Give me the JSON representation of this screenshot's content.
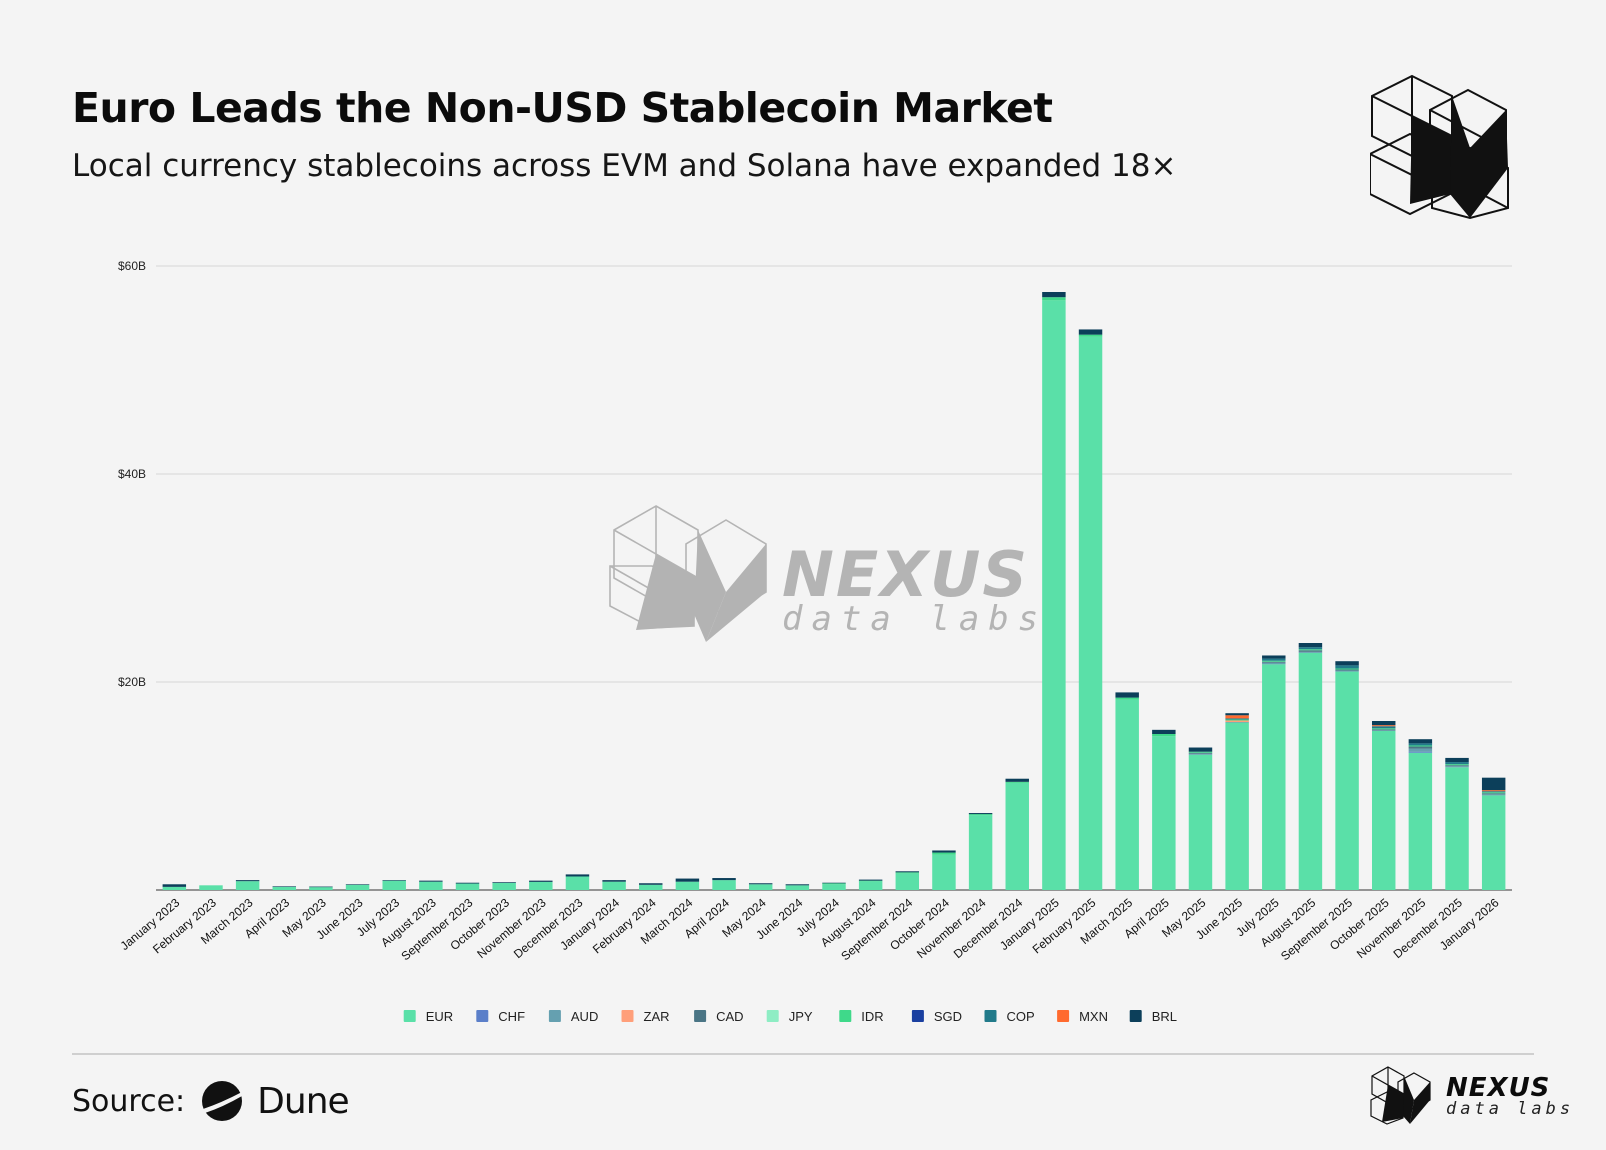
{
  "header": {
    "title": "Euro Leads the Non-USD Stablecoin Market",
    "subtitle": "Local currency stablecoins across EVM and Solana have expanded 18×"
  },
  "watermark": {
    "line1": "NEXUS",
    "line2": "data labs"
  },
  "footer": {
    "source_label": "Source:",
    "source_name": "Dune",
    "brand_line1": "NEXUS",
    "brand_line2": "data labs"
  },
  "icons": {
    "brand_logo": "nexus-logo-icon",
    "dune_logo": "dune-logo-icon"
  },
  "chart_data": {
    "type": "bar",
    "stacked": true,
    "title": "",
    "xlabel": "",
    "ylabel": "",
    "ylim": [
      0,
      60000000000
    ],
    "yticks": [
      {
        "value": 20000000000,
        "label": "$20B"
      },
      {
        "value": 40000000000,
        "label": "$40B"
      },
      {
        "value": 60000000000,
        "label": "$60B"
      }
    ],
    "grid": true,
    "legend_position": "bottom",
    "categories": [
      "January 2023",
      "February 2023",
      "March 2023",
      "April 2023",
      "May 2023",
      "June 2023",
      "July 2023",
      "August 2023",
      "September 2023",
      "October 2023",
      "November 2023",
      "December 2023",
      "January 2024",
      "February 2024",
      "March 2024",
      "April 2024",
      "May 2024",
      "June 2024",
      "July 2024",
      "August 2024",
      "September 2024",
      "October 2024",
      "November 2024",
      "December 2024",
      "January 2025",
      "February 2025",
      "March 2025",
      "April 2025",
      "May 2025",
      "June 2025",
      "July 2025",
      "August 2025",
      "September 2025",
      "October 2025",
      "November 2025",
      "December 2025",
      "January 2026"
    ],
    "series": [
      {
        "name": "EUR",
        "color": "#5ae0a8",
        "values": [
          0.3,
          0.45,
          0.85,
          0.3,
          0.28,
          0.5,
          0.9,
          0.8,
          0.62,
          0.68,
          0.78,
          1.3,
          0.8,
          0.5,
          0.8,
          0.95,
          0.55,
          0.45,
          0.55,
          0.85,
          1.6,
          3.4,
          7.2,
          10.3,
          56.7,
          53.2,
          18.3,
          14.8,
          13.0,
          16.1,
          21.7,
          22.8,
          21.0,
          15.3,
          13.2,
          11.8,
          9.1
        ]
      },
      {
        "name": "CHF",
        "color": "#5b7fc9",
        "values": [
          0,
          0,
          0,
          0,
          0,
          0,
          0,
          0,
          0,
          0,
          0,
          0,
          0,
          0,
          0,
          0,
          0,
          0,
          0,
          0,
          0,
          0,
          0,
          0,
          0,
          0,
          0,
          0,
          0,
          0,
          0,
          0,
          0,
          0,
          0.1,
          0,
          0
        ]
      },
      {
        "name": "AUD",
        "color": "#65a0b0",
        "values": [
          0,
          0,
          0,
          0,
          0,
          0,
          0,
          0,
          0,
          0,
          0,
          0,
          0,
          0,
          0,
          0,
          0,
          0,
          0,
          0,
          0,
          0,
          0,
          0,
          0,
          0,
          0,
          0,
          0.1,
          0.05,
          0.15,
          0.1,
          0.1,
          0.05,
          0.3,
          0.1,
          0.1
        ]
      },
      {
        "name": "ZAR",
        "color": "#ff9f7a",
        "values": [
          0,
          0,
          0,
          0,
          0,
          0,
          0,
          0,
          0,
          0,
          0,
          0,
          0,
          0,
          0,
          0,
          0,
          0,
          0,
          0,
          0,
          0,
          0,
          0,
          0,
          0,
          0,
          0,
          0,
          0.15,
          0,
          0,
          0,
          0,
          0,
          0,
          0
        ]
      },
      {
        "name": "CAD",
        "color": "#4a7585",
        "values": [
          0,
          0,
          0,
          0,
          0,
          0,
          0,
          0,
          0,
          0,
          0,
          0,
          0,
          0,
          0,
          0,
          0,
          0,
          0,
          0,
          0,
          0,
          0,
          0,
          0,
          0,
          0,
          0,
          0.1,
          0,
          0.1,
          0.15,
          0.1,
          0.1,
          0.2,
          0.1,
          0.1
        ]
      },
      {
        "name": "JPY",
        "color": "#8eedc4",
        "values": [
          0,
          0,
          0,
          0,
          0,
          0,
          0,
          0,
          0,
          0,
          0,
          0,
          0,
          0,
          0,
          0,
          0,
          0,
          0,
          0,
          0,
          0,
          0,
          0,
          0,
          0,
          0,
          0,
          0,
          0,
          0,
          0,
          0,
          0,
          0,
          0,
          0
        ]
      },
      {
        "name": "IDR",
        "color": "#3fd98a",
        "values": [
          0,
          0,
          0,
          0,
          0,
          0,
          0,
          0,
          0,
          0,
          0,
          0,
          0,
          0,
          0,
          0,
          0,
          0,
          0.1,
          0.05,
          0.1,
          0.2,
          0.1,
          0.1,
          0.3,
          0.2,
          0.2,
          0.2,
          0.1,
          0.1,
          0.1,
          0.1,
          0.1,
          0.1,
          0.1,
          0.1,
          0.1
        ]
      },
      {
        "name": "SGD",
        "color": "#1a3fa0",
        "values": [
          0,
          0,
          0,
          0,
          0,
          0,
          0,
          0,
          0,
          0,
          0,
          0,
          0,
          0,
          0,
          0,
          0,
          0,
          0,
          0,
          0,
          0,
          0,
          0,
          0,
          0,
          0,
          0,
          0,
          0,
          0,
          0,
          0,
          0,
          0,
          0,
          0
        ]
      },
      {
        "name": "COP",
        "color": "#217a8a",
        "values": [
          0,
          0,
          0,
          0,
          0,
          0,
          0,
          0,
          0,
          0,
          0,
          0,
          0,
          0,
          0,
          0,
          0,
          0,
          0,
          0,
          0,
          0,
          0,
          0,
          0,
          0,
          0,
          0,
          0,
          0.1,
          0.2,
          0.2,
          0.3,
          0.2,
          0.2,
          0.2,
          0.1
        ]
      },
      {
        "name": "MXN",
        "color": "#ff6a2e",
        "values": [
          0,
          0,
          0,
          0,
          0,
          0,
          0,
          0,
          0,
          0,
          0,
          0,
          0,
          0,
          0,
          0,
          0,
          0,
          0,
          0,
          0,
          0,
          0,
          0,
          0,
          0,
          0,
          0,
          0,
          0.3,
          0,
          0,
          0,
          0.1,
          0,
          0,
          0.1
        ]
      },
      {
        "name": "BRL",
        "color": "#0c3f5a",
        "values": [
          0.25,
          0,
          0.1,
          0.05,
          0.05,
          0.05,
          0.05,
          0.1,
          0.08,
          0.07,
          0.12,
          0.2,
          0.15,
          0.15,
          0.3,
          0.2,
          0.1,
          0.1,
          0.05,
          0.1,
          0.1,
          0.2,
          0.1,
          0.3,
          0.5,
          0.5,
          0.5,
          0.4,
          0.4,
          0.2,
          0.3,
          0.4,
          0.4,
          0.4,
          0.4,
          0.4,
          1.2
        ]
      }
    ],
    "units_note": "series values are in billions of USD"
  }
}
